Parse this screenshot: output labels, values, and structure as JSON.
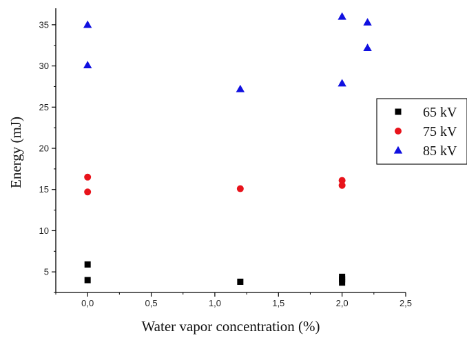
{
  "chart_data": {
    "type": "scatter",
    "xlabel": "Water vapor concentration (%)",
    "ylabel": "Energy (mJ)",
    "xlim": [
      -0.25,
      2.5
    ],
    "ylim": [
      2.5,
      37
    ],
    "x_ticks": [
      "0,0",
      "0,5",
      "1,0",
      "1,5",
      "2,0",
      "2,5"
    ],
    "x_tick_values": [
      0,
      0.5,
      1.0,
      1.5,
      2.0,
      2.5
    ],
    "y_ticks": [
      "5",
      "10",
      "15",
      "20",
      "25",
      "30",
      "35"
    ],
    "y_tick_values": [
      5,
      10,
      15,
      20,
      25,
      30,
      35
    ],
    "grid": false,
    "legend_position": "right",
    "series": [
      {
        "name": "65 kV",
        "color": "#000000",
        "marker": "square",
        "points": [
          {
            "x": 0.0,
            "y": 5.9
          },
          {
            "x": 0.0,
            "y": 4.0
          },
          {
            "x": 1.2,
            "y": 3.8
          },
          {
            "x": 2.0,
            "y": 4.4
          },
          {
            "x": 2.0,
            "y": 4.1
          },
          {
            "x": 2.0,
            "y": 3.7
          }
        ]
      },
      {
        "name": "75 kV",
        "color": "#e8131b",
        "marker": "circle",
        "points": [
          {
            "x": 0.0,
            "y": 16.5
          },
          {
            "x": 0.0,
            "y": 14.7
          },
          {
            "x": 1.2,
            "y": 15.1
          },
          {
            "x": 2.0,
            "y": 16.1
          },
          {
            "x": 2.0,
            "y": 15.5
          }
        ]
      },
      {
        "name": "85 kV",
        "color": "#1010e0",
        "marker": "triangle",
        "points": [
          {
            "x": 0.0,
            "y": 35.0
          },
          {
            "x": 0.0,
            "y": 30.1
          },
          {
            "x": 1.2,
            "y": 27.2
          },
          {
            "x": 2.0,
            "y": 36.0
          },
          {
            "x": 2.0,
            "y": 27.9
          },
          {
            "x": 2.2,
            "y": 35.3
          },
          {
            "x": 2.2,
            "y": 32.2
          }
        ]
      }
    ]
  }
}
